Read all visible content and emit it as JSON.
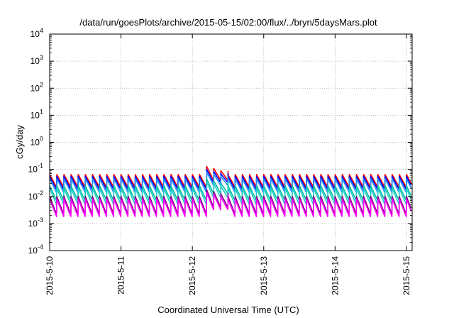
{
  "chart_data": {
    "type": "line",
    "title": "/data/run/goesPlots/archive/2015-05-15/02:00/flux/../bryn/5daysMars.plot",
    "xlabel": "Coordinated Universal Time (UTC)",
    "ylabel": "cGy/day",
    "yscale": "log",
    "ylim": [
      0.0001,
      10000
    ],
    "xlim_days": [
      0,
      5.08
    ],
    "grid": true,
    "y_ticks": [
      {
        "base": "10",
        "exp": "4"
      },
      {
        "base": "10",
        "exp": "3"
      },
      {
        "base": "10",
        "exp": "2"
      },
      {
        "base": "10",
        "exp": "1"
      },
      {
        "base": "10",
        "exp": "0"
      },
      {
        "base": "10",
        "exp": "-1"
      },
      {
        "base": "10",
        "exp": "-2"
      },
      {
        "base": "10",
        "exp": "-3"
      },
      {
        "base": "10",
        "exp": "-4"
      }
    ],
    "x_ticks": [
      "2015-5-10",
      "2015-5-11",
      "2015-5-12",
      "2015-5-13",
      "2015-5-14",
      "2015-5-15"
    ],
    "cycle_days": 0.1,
    "series": [
      {
        "color": "#ff0000",
        "peak": 0.065,
        "trough": 0.022,
        "spike_peak": 0.13
      },
      {
        "color": "#0000ff",
        "peak": 0.055,
        "trough": 0.018,
        "spike_peak": 0.1
      },
      {
        "color": "#1e90ff",
        "peak": 0.045,
        "trough": 0.014,
        "spike_peak": 0.08
      },
      {
        "color": "#00c0a0",
        "peak": 0.025,
        "trough": 0.007,
        "spike_peak": 0.045
      },
      {
        "color": "#22cccc",
        "peak": 0.02,
        "trough": 0.005,
        "spike_peak": 0.035
      },
      {
        "color": "#800080",
        "peak": 0.01,
        "trough": 0.0022,
        "spike_peak": 0.018
      },
      {
        "color": "#ff00ff",
        "peak": 0.008,
        "trough": 0.0018,
        "spike_peak": 0.014
      }
    ]
  }
}
